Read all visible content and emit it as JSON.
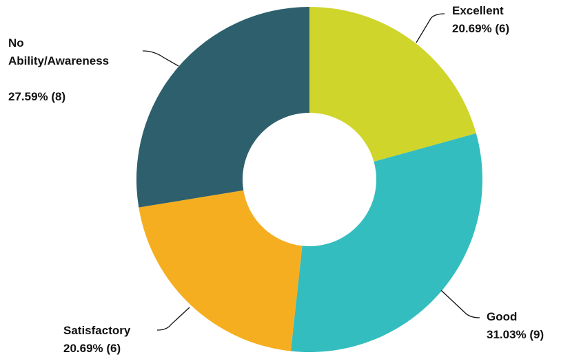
{
  "chart_data": {
    "type": "pie",
    "variant": "donut",
    "title": "",
    "legend": "none",
    "slices": [
      {
        "label": "Excellent",
        "value_text": "20.69% (6)",
        "percent": 20.69,
        "count": 6,
        "color": "#cfd52b"
      },
      {
        "label": "Good",
        "value_text": "31.03% (9)",
        "percent": 31.03,
        "count": 9,
        "color": "#34bdbf"
      },
      {
        "label": "Satisfactory",
        "value_text": "20.69% (6)",
        "percent": 20.69,
        "count": 6,
        "color": "#f6ae21"
      },
      {
        "label_lines": [
          "No",
          "Ability/Awareness"
        ],
        "value_text": "27.59% (8)",
        "percent": 27.59,
        "count": 8,
        "color": "#2e5f6c"
      }
    ]
  }
}
